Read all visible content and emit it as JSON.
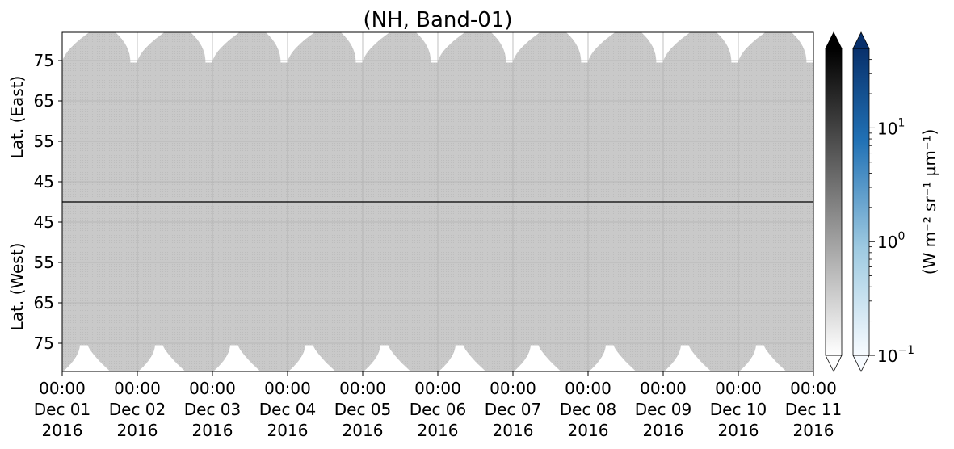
{
  "chart_data": {
    "type": "heatmap",
    "title": "(NH, Band-01)",
    "panels": [
      {
        "name": "east",
        "ylabel": "Lat. (East)",
        "ylim": [
          40,
          82
        ],
        "yticks": [
          45,
          55,
          65,
          75
        ],
        "y_inverted": false
      },
      {
        "name": "west",
        "ylabel": "Lat. (West)",
        "ylim": [
          40,
          82
        ],
        "yticks": [
          75,
          65,
          55,
          45
        ],
        "y_inverted": true
      }
    ],
    "x_ticks": [
      {
        "time": "00:00",
        "date": "Dec 01",
        "year": "2016"
      },
      {
        "time": "00:00",
        "date": "Dec 02",
        "year": "2016"
      },
      {
        "time": "00:00",
        "date": "Dec 03",
        "year": "2016"
      },
      {
        "time": "00:00",
        "date": "Dec 04",
        "year": "2016"
      },
      {
        "time": "00:00",
        "date": "Dec 05",
        "year": "2016"
      },
      {
        "time": "00:00",
        "date": "Dec 06",
        "year": "2016"
      },
      {
        "time": "00:00",
        "date": "Dec 07",
        "year": "2016"
      },
      {
        "time": "00:00",
        "date": "Dec 08",
        "year": "2016"
      },
      {
        "time": "00:00",
        "date": "Dec 09",
        "year": "2016"
      },
      {
        "time": "00:00",
        "date": "Dec 10",
        "year": "2016"
      },
      {
        "time": "00:00",
        "date": "Dec 11",
        "year": "2016"
      }
    ],
    "xlim": [
      "2016-12-01",
      "2016-12-11"
    ],
    "grid": true,
    "fill_color": "#c8c8c8",
    "colorbars": [
      {
        "name": "gray",
        "colors": [
          "#ffffff",
          "#000000"
        ]
      },
      {
        "name": "blue",
        "colors": [
          "#f7fbff",
          "#08306b"
        ]
      }
    ],
    "colorbar_scale": "log",
    "colorbar_range": [
      0.1,
      50
    ],
    "colorbar_ticks": [
      {
        "value": 0.1,
        "base": "10",
        "exp": "−1"
      },
      {
        "value": 1,
        "base": "10",
        "exp": "0"
      },
      {
        "value": 10,
        "base": "10",
        "exp": "1"
      }
    ],
    "colorbar_label": "(W m⁻² sr⁻¹ µm⁻¹)"
  }
}
